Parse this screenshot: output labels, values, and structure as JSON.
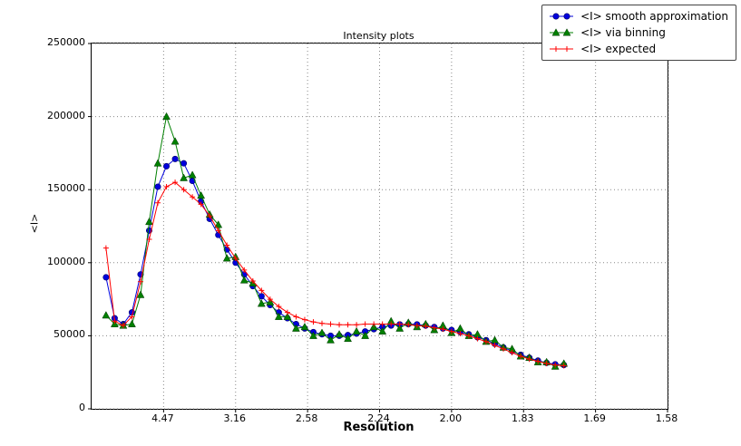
{
  "chart_data": {
    "type": "line",
    "title": "Intensity plots",
    "xlabel": "Resolution",
    "ylabel": "<I>",
    "grid": true,
    "legend_position": "upper right",
    "x_range": [
      0.0,
      0.4
    ],
    "y_range": [
      0,
      250000
    ],
    "x_axis_note": "linear in 1/d^2, tick labels show resolution d",
    "x_ticks": [
      {
        "label": "4.47",
        "s": 0.05
      },
      {
        "label": "3.16",
        "s": 0.1
      },
      {
        "label": "2.58",
        "s": 0.15
      },
      {
        "label": "2.24",
        "s": 0.2
      },
      {
        "label": "2.00",
        "s": 0.25
      },
      {
        "label": "1.83",
        "s": 0.3
      },
      {
        "label": "1.69",
        "s": 0.35
      },
      {
        "label": "1.58",
        "s": 0.4
      }
    ],
    "y_ticks": [
      {
        "label": "0",
        "v": 0
      },
      {
        "label": "50000",
        "v": 50000
      },
      {
        "label": "100000",
        "v": 100000
      },
      {
        "label": "150000",
        "v": 150000
      },
      {
        "label": "200000",
        "v": 200000
      },
      {
        "label": "250000",
        "v": 250000
      }
    ],
    "x": [
      0.01,
      0.016,
      0.022,
      0.028,
      0.034,
      0.04,
      0.046,
      0.052,
      0.058,
      0.064,
      0.07,
      0.076,
      0.082,
      0.088,
      0.094,
      0.1,
      0.106,
      0.112,
      0.118,
      0.124,
      0.13,
      0.136,
      0.142,
      0.148,
      0.154,
      0.16,
      0.166,
      0.172,
      0.178,
      0.184,
      0.19,
      0.196,
      0.202,
      0.208,
      0.214,
      0.22,
      0.226,
      0.232,
      0.238,
      0.244,
      0.25,
      0.256,
      0.262,
      0.268,
      0.274,
      0.28,
      0.286,
      0.292,
      0.298,
      0.304,
      0.31,
      0.316,
      0.322,
      0.328
    ],
    "series": [
      {
        "name": "<I> smooth approximation",
        "color": "#0000dd",
        "marker": "circle",
        "values": [
          90000,
          62000,
          58000,
          66000,
          92000,
          122000,
          152000,
          166000,
          171000,
          168000,
          156000,
          142000,
          130000,
          119000,
          109000,
          100000,
          92000,
          84000,
          77000,
          71000,
          66000,
          62000,
          58000,
          55000,
          52500,
          51000,
          50000,
          50000,
          50500,
          51500,
          53000,
          54500,
          56000,
          57000,
          57800,
          58000,
          57800,
          57000,
          56000,
          55000,
          54000,
          52500,
          51000,
          49000,
          47000,
          44500,
          42000,
          39500,
          37000,
          35000,
          33000,
          31500,
          30500,
          30000
        ]
      },
      {
        "name": "<I> via binning",
        "color": "#008000",
        "marker": "triangle",
        "values": [
          64000,
          58000,
          57000,
          58000,
          78000,
          128000,
          168000,
          200000,
          183000,
          158000,
          160000,
          146000,
          133000,
          126000,
          103000,
          104000,
          88000,
          86000,
          72000,
          73000,
          63000,
          63000,
          55000,
          56000,
          50000,
          52000,
          47000,
          51000,
          48000,
          53000,
          50000,
          56000,
          53000,
          60000,
          55000,
          59000,
          56000,
          58000,
          54000,
          57000,
          52000,
          55000,
          50000,
          51000,
          46000,
          47000,
          42000,
          41000,
          36000,
          35000,
          32000,
          32000,
          29000,
          31000
        ]
      },
      {
        "name": "<I> expected",
        "color": "#ff0000",
        "marker": "plus",
        "values": [
          110000,
          60000,
          57000,
          63000,
          87000,
          116000,
          141000,
          152000,
          155000,
          150000,
          145000,
          140000,
          132000,
          122000,
          112000,
          103000,
          95000,
          87500,
          81000,
          75000,
          70000,
          66000,
          63000,
          61000,
          59500,
          58500,
          58000,
          57500,
          57500,
          57500,
          58000,
          58000,
          58000,
          58000,
          58000,
          57500,
          57000,
          56500,
          55500,
          54500,
          53000,
          51500,
          50000,
          48000,
          46000,
          43500,
          41000,
          38500,
          36000,
          34000,
          32500,
          31000,
          30000,
          29500
        ]
      }
    ]
  }
}
